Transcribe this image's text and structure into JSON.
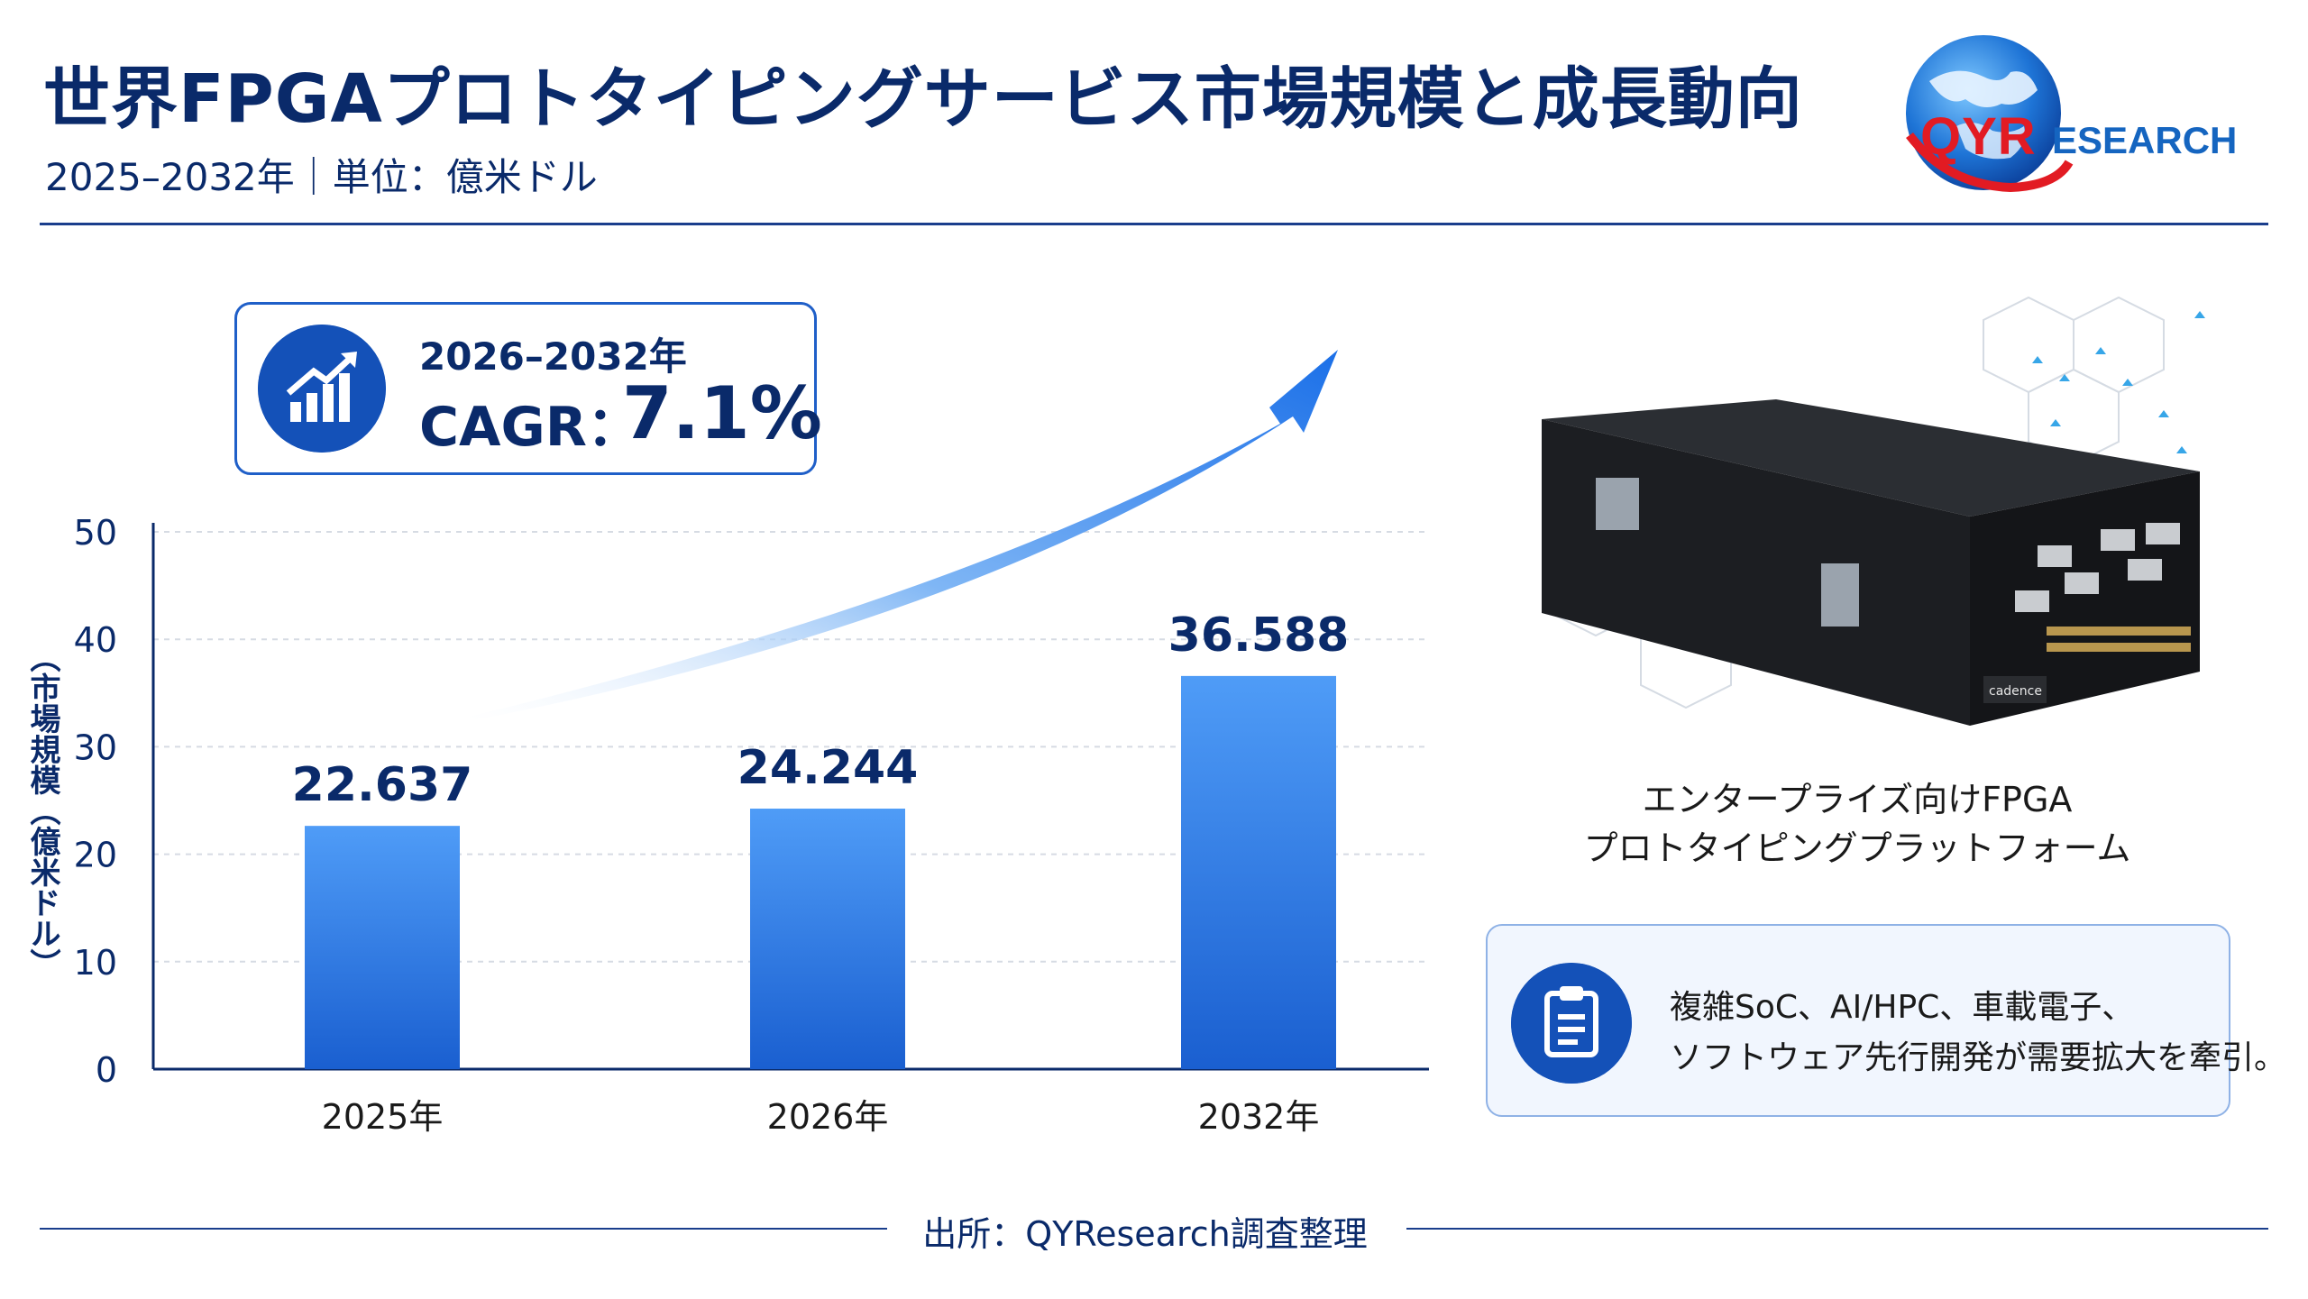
{
  "header": {
    "title": "世界FPGAプロトタイピングサービス市場規模と成長動向",
    "subtitle": "2025–2032年｜単位：億米ドル"
  },
  "logo": {
    "qyr": "QYR",
    "esearch": "ESEARCH"
  },
  "cagr": {
    "period": "2026–2032年",
    "label": "CAGR：",
    "value": "7.1%"
  },
  "chart_data": {
    "type": "bar",
    "categories": [
      "2025年",
      "2026年",
      "2032年"
    ],
    "values": [
      22.637,
      24.244,
      36.588
    ],
    "value_labels": [
      "22.637",
      "24.244",
      "36.588"
    ],
    "ylabel": "（市場規模（億米ドル）",
    "ylim": [
      0,
      50
    ],
    "yticks": [
      0,
      10,
      20,
      30,
      40,
      50
    ],
    "grid": true,
    "bar_color_top": "#4f9cf7",
    "bar_color_bottom": "#1a5fd0"
  },
  "product": {
    "brand": "cadence",
    "caption_line1": "エンタープライズ向けFPGA",
    "caption_line2": "プロトタイピングプラットフォーム"
  },
  "info": {
    "line1": "複雑SoC、AI/HPC、車載電子、",
    "line2": "ソフトウェア先行開発が需要拡大を牽引。"
  },
  "source": "出所：QYResearch調査整理",
  "colors": {
    "navy": "#0a2a6a",
    "accent": "#1451b8",
    "logo_red": "#e21b23"
  }
}
